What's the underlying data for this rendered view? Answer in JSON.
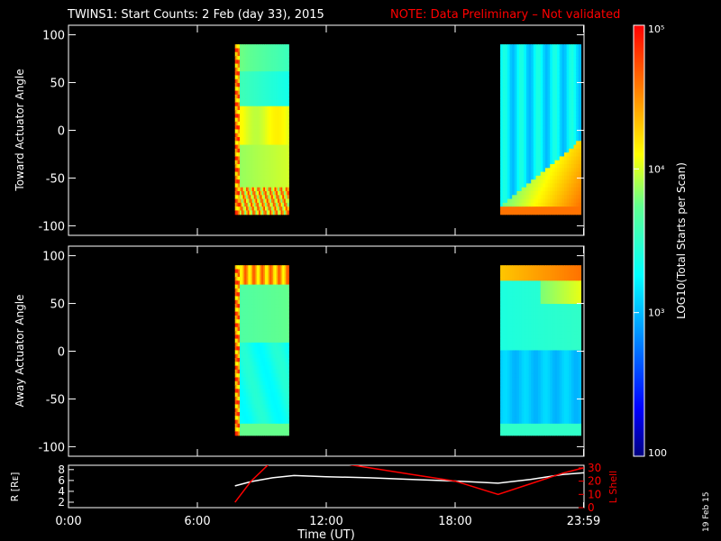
{
  "header": {
    "title": "TWINS1: Start Counts:  2 Feb (day  33), 2015",
    "note": "NOTE: Data Preliminary – Not validated",
    "note_color": "#ff0000"
  },
  "chart_data": [
    {
      "type": "heatmap",
      "panel": "toward",
      "ylabel": "Toward Actuator Angle",
      "ylim": [
        -110,
        110
      ],
      "yticks": [
        100,
        50,
        0,
        -50,
        -100
      ],
      "xlim_hours": [
        0,
        24
      ],
      "data_range_y": [
        -88,
        90
      ],
      "blocks": [
        {
          "start_hour": 7.75,
          "end_hour": 10.25,
          "median_log": 3.7
        },
        {
          "start_hour": 20.1,
          "end_hour": 23.85,
          "median_log": 3.3
        }
      ]
    },
    {
      "type": "heatmap",
      "panel": "away",
      "ylabel": "Away Actuator Angle",
      "ylim": [
        -110,
        110
      ],
      "yticks": [
        100,
        50,
        0,
        -50,
        -100
      ],
      "xlim_hours": [
        0,
        24
      ],
      "data_range_y": [
        -88,
        90
      ],
      "blocks": [
        {
          "start_hour": 7.75,
          "end_hour": 10.25,
          "median_log": 3.7
        },
        {
          "start_hour": 20.1,
          "end_hour": 23.85,
          "median_log": 3.2
        }
      ]
    },
    {
      "type": "line",
      "panel": "orbit",
      "ylabel": "R [Rᴇ]",
      "y2label": "L Shell",
      "ylim": [
        1,
        8.8
      ],
      "y2lim": [
        0,
        32
      ],
      "yticks": [
        2,
        4,
        6,
        8
      ],
      "y2ticks": [
        0,
        10,
        20,
        30
      ],
      "xlabel": "Time (UT)",
      "xticks": [
        {
          "hour": 0,
          "label": "0:00"
        },
        {
          "hour": 6,
          "label": "6:00"
        },
        {
          "hour": 12,
          "label": "12:00"
        },
        {
          "hour": 18,
          "label": "18:00"
        },
        {
          "hour": 23.98,
          "label": "23:59"
        }
      ],
      "series": [
        {
          "name": "R",
          "color": "#ffffff",
          "axis": "left",
          "x": [
            7.75,
            8.5,
            9.5,
            10.5,
            12.0,
            14.0,
            16.0,
            18.0,
            20.0,
            21.5,
            23.0,
            23.98
          ],
          "y": [
            5.0,
            5.8,
            6.5,
            6.9,
            6.7,
            6.5,
            6.2,
            5.9,
            5.5,
            6.2,
            7.1,
            7.4
          ]
        },
        {
          "name": "L Shell",
          "color": "#ff0000",
          "axis": "right",
          "x": [
            7.75,
            8.5,
            9.4,
            10.5,
            12.5,
            16.0,
            18.0,
            20.0,
            21.5,
            23.0,
            23.98
          ],
          "y": [
            4,
            20,
            34,
            34,
            34,
            25,
            20,
            10,
            18,
            26,
            30
          ]
        }
      ]
    }
  ],
  "colorbar": {
    "label": "LOG10(Total Starts per Scan)",
    "ticks": [
      "10⁵",
      "10⁴",
      "10³",
      "100"
    ],
    "ticks_log": [
      5,
      4,
      3,
      2
    ],
    "range_log": [
      2,
      5
    ]
  },
  "footer": {
    "date_stamp": "19 Feb 15"
  }
}
